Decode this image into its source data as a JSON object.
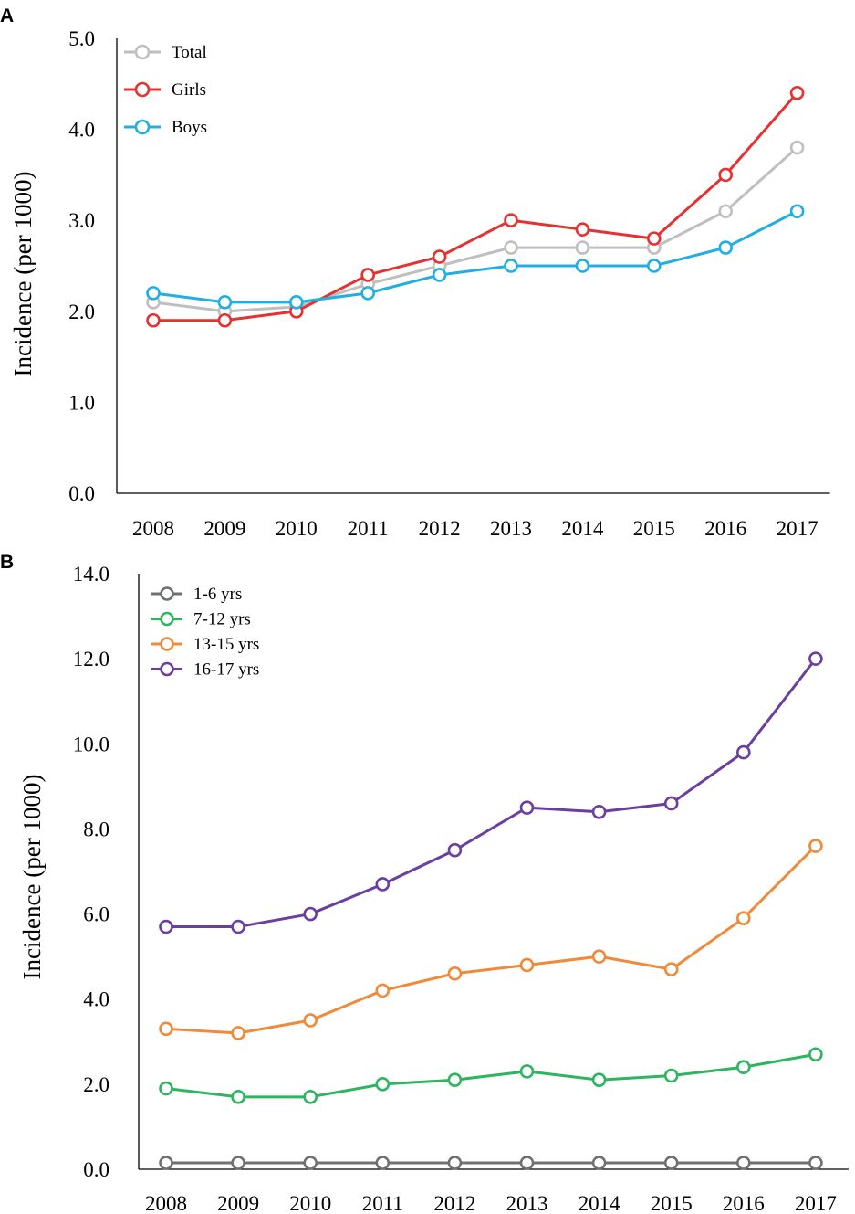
{
  "chart_data": [
    {
      "panel": "A",
      "type": "line",
      "title": "",
      "xlabel": "",
      "ylabel": "Incidence (per 1000)",
      "ylim": [
        0,
        5
      ],
      "ytick_labels": [
        "0.0",
        "1.0",
        "2.0",
        "3.0",
        "4.0",
        "5.0"
      ],
      "categories": [
        "2008",
        "2009",
        "2010",
        "2011",
        "2012",
        "2013",
        "2014",
        "2015",
        "2016",
        "2017"
      ],
      "series": [
        {
          "name": "Total",
          "color": "#bfbfbf",
          "values": [
            2.1,
            2.0,
            2.05,
            2.3,
            2.5,
            2.7,
            2.7,
            2.7,
            3.1,
            3.8
          ]
        },
        {
          "name": "Girls",
          "color": "#e53131",
          "values": [
            1.9,
            1.9,
            2.0,
            2.4,
            2.6,
            3.0,
            2.9,
            2.8,
            3.5,
            4.4
          ]
        },
        {
          "name": "Boys",
          "color": "#22aee4",
          "values": [
            2.2,
            2.1,
            2.1,
            2.2,
            2.4,
            2.5,
            2.5,
            2.5,
            2.7,
            3.1
          ]
        }
      ],
      "legend_position": "top-left",
      "grid": false
    },
    {
      "panel": "B",
      "type": "line",
      "title": "",
      "xlabel": "",
      "ylabel": "Incidence (per 1000)",
      "ylim": [
        0,
        14
      ],
      "ytick_labels": [
        "0.0",
        "2.0",
        "4.0",
        "6.0",
        "8.0",
        "10.0",
        "12.0",
        "14.0"
      ],
      "categories": [
        "2008",
        "2009",
        "2010",
        "2011",
        "2012",
        "2013",
        "2014",
        "2015",
        "2016",
        "2017"
      ],
      "series": [
        {
          "name": "1-6 yrs",
          "color": "#707070",
          "values": [
            0.15,
            0.15,
            0.15,
            0.15,
            0.15,
            0.15,
            0.15,
            0.15,
            0.15,
            0.15
          ]
        },
        {
          "name": "7-12 yrs",
          "color": "#2eb55f",
          "values": [
            1.9,
            1.7,
            1.7,
            2.0,
            2.1,
            2.3,
            2.1,
            2.2,
            2.4,
            2.7
          ]
        },
        {
          "name": "13-15 yrs",
          "color": "#f08a3a",
          "values": [
            3.3,
            3.2,
            3.5,
            4.2,
            4.6,
            4.8,
            5.0,
            4.7,
            5.9,
            7.6
          ]
        },
        {
          "name": "16-17 yrs",
          "color": "#6b3fa0",
          "values": [
            5.7,
            5.7,
            6.0,
            6.7,
            7.5,
            8.5,
            8.4,
            8.6,
            9.8,
            12.0
          ]
        }
      ],
      "legend_position": "top-left",
      "grid": false
    }
  ]
}
